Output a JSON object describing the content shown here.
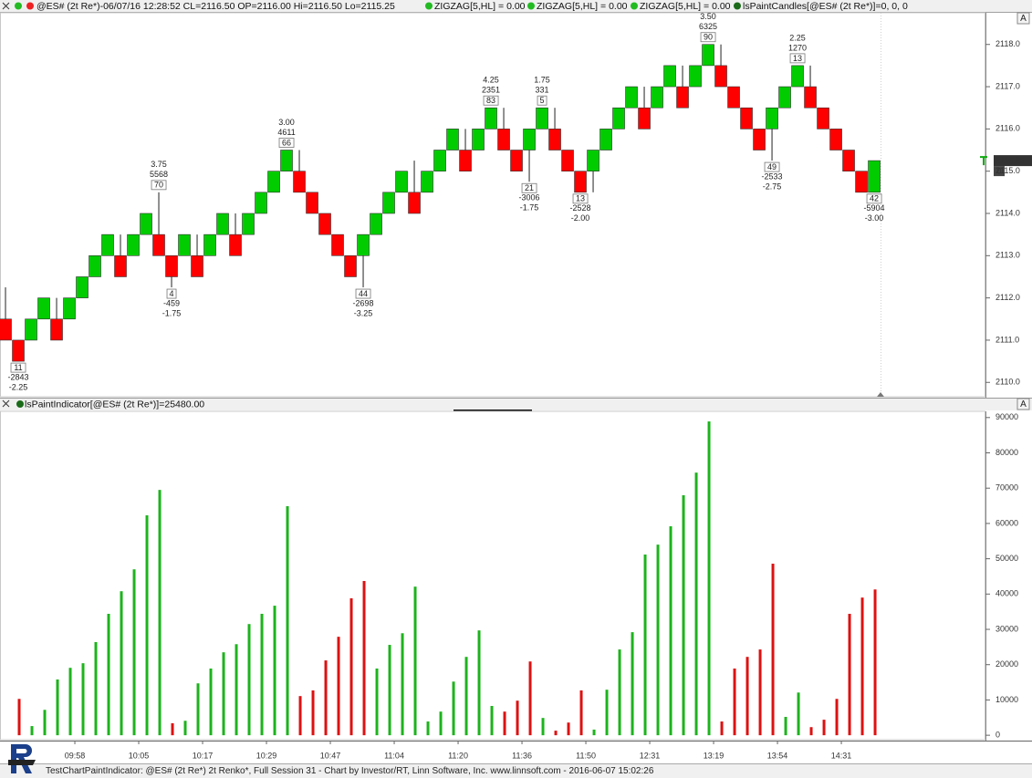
{
  "status_bar": {
    "quote": "@ES# (2t Re*)-06/07/16 12:28:52 CL=2116.50 OP=2116.00 Hi=2116.50 Lo=2115.25",
    "indicators": [
      "ZIGZAG[5,HL] = 0.00",
      "ZIGZAG[5,HL] = 0.00",
      "ZIGZAG[5,HL] = 0.00",
      "lsPaintCandles[@ES# (2t Re*)]=0, 0, 0"
    ],
    "autoscale": "A"
  },
  "indicator_bar": {
    "text": "lsPaintIndicator[@ES# (2t Re*)]=25480.00",
    "autoscale": "A"
  },
  "footer": "TestChartPaintIndicator: @ES# (2t Re*) 2t Renko*, Full Session 31 - Chart by Investor/RT, Linn Software, Inc. www.linnsoft.com - 2016-06-07 15:02:26",
  "chart_data": [
    {
      "type": "candlestick",
      "up_color": "#00cc00",
      "down_color": "#ff0000",
      "xlim": [
        -0.43,
        76.71
      ],
      "ylim": [
        2109.66,
        2118.75
      ],
      "yticks": [
        {
          "value": 2110,
          "label": "2110.0"
        },
        {
          "value": 2111,
          "label": "2111.0"
        },
        {
          "value": 2112,
          "label": "2112.0"
        },
        {
          "value": 2113,
          "label": "2113.0"
        },
        {
          "value": 2114,
          "label": "2114.0"
        },
        {
          "value": 2115,
          "label": "2115.0"
        },
        {
          "value": 2116,
          "label": "2116.0"
        },
        {
          "value": 2117,
          "label": "2117.0"
        },
        {
          "value": 2118,
          "label": "2118.0"
        }
      ],
      "last_price": {
        "value": 2115.25,
        "label": "2115.25"
      },
      "last_price_count": 0,
      "open": [
        2111.5,
        2111.0,
        2111.0,
        2111.5,
        2111.5,
        2111.5,
        2112.0,
        2112.5,
        2113.0,
        2113.0,
        2113.0,
        2113.5,
        2113.5,
        2113.0,
        2113.0,
        2113.0,
        2113.0,
        2113.5,
        2113.5,
        2113.5,
        2114.0,
        2114.5,
        2115.0,
        2115.0,
        2114.5,
        2114.0,
        2113.5,
        2113.0,
        2113.0,
        2113.5,
        2114.0,
        2114.5,
        2114.5,
        2114.5,
        2115.0,
        2115.5,
        2115.5,
        2115.5,
        2116.0,
        2116.0,
        2115.5,
        2115.5,
        2116.0,
        2116.0,
        2115.5,
        2115.0,
        2115.0,
        2115.5,
        2116.0,
        2116.5,
        2116.5,
        2116.5,
        2117.0,
        2117.0,
        2117.0,
        2117.5,
        2117.5,
        2117.0,
        2116.5,
        2116.0,
        2116.0,
        2116.5,
        2117.0,
        2117.0,
        2116.5,
        2116.0,
        2115.5,
        2115.0,
        2114.5
      ],
      "close": [
        2111.0,
        2110.5,
        2111.5,
        2112.0,
        2111.0,
        2112.0,
        2112.5,
        2113.0,
        2113.5,
        2112.5,
        2113.5,
        2114.0,
        2113.0,
        2112.5,
        2113.5,
        2112.5,
        2113.5,
        2114.0,
        2113.0,
        2114.0,
        2114.5,
        2115.0,
        2115.5,
        2114.5,
        2114.0,
        2113.5,
        2113.0,
        2112.5,
        2113.5,
        2114.0,
        2114.5,
        2115.0,
        2114.0,
        2115.0,
        2115.5,
        2116.0,
        2115.0,
        2116.0,
        2116.5,
        2115.5,
        2115.0,
        2116.0,
        2116.5,
        2115.5,
        2115.0,
        2114.5,
        2115.5,
        2116.0,
        2116.5,
        2117.0,
        2116.0,
        2117.0,
        2117.5,
        2116.5,
        2117.5,
        2118.0,
        2117.0,
        2116.5,
        2116.0,
        2115.5,
        2116.5,
        2117.0,
        2117.5,
        2116.5,
        2116.0,
        2115.5,
        2115.0,
        2114.5,
        2115.25
      ],
      "high": [
        2112.25,
        2111.0,
        2111.5,
        2112.0,
        2112.0,
        2112.0,
        2112.5,
        2113.0,
        2113.5,
        2113.5,
        2113.5,
        2114.0,
        2114.5,
        2113.0,
        2113.5,
        2113.5,
        2113.5,
        2114.0,
        2114.0,
        2114.0,
        2114.5,
        2115.0,
        2115.5,
        2115.5,
        2114.5,
        2114.0,
        2113.5,
        2113.0,
        2113.5,
        2114.0,
        2114.5,
        2115.0,
        2115.25,
        2115.0,
        2115.5,
        2116.0,
        2116.0,
        2116.0,
        2116.5,
        2116.5,
        2115.5,
        2116.0,
        2116.5,
        2116.5,
        2115.5,
        2115.0,
        2115.5,
        2116.0,
        2116.5,
        2117.0,
        2117.0,
        2117.0,
        2117.5,
        2117.5,
        2117.5,
        2118.0,
        2118.0,
        2117.0,
        2116.5,
        2116.0,
        2116.5,
        2117.0,
        2117.5,
        2117.5,
        2116.5,
        2116.0,
        2115.5,
        2115.0,
        2115.25
      ],
      "low": [
        2111.0,
        2110.5,
        2111.0,
        2111.5,
        2111.0,
        2111.5,
        2112.0,
        2112.5,
        2113.0,
        2112.5,
        2113.0,
        2113.5,
        2113.0,
        2112.25,
        2113.0,
        2112.5,
        2113.0,
        2113.5,
        2113.0,
        2113.5,
        2114.0,
        2114.5,
        2115.0,
        2114.5,
        2114.0,
        2113.5,
        2113.0,
        2112.5,
        2112.25,
        2113.5,
        2114.0,
        2114.5,
        2114.0,
        2114.5,
        2115.0,
        2115.5,
        2115.0,
        2115.5,
        2116.0,
        2115.5,
        2115.0,
        2114.75,
        2116.0,
        2115.5,
        2115.0,
        2114.5,
        2114.5,
        2115.5,
        2116.0,
        2116.5,
        2116.0,
        2116.5,
        2117.0,
        2116.5,
        2117.0,
        2117.5,
        2117.0,
        2116.5,
        2116.0,
        2115.5,
        2115.25,
        2116.5,
        2117.0,
        2116.5,
        2116.0,
        2115.5,
        2115.0,
        2114.5,
        2114.5
      ],
      "annotations": [
        {
          "index": 1,
          "position": "below",
          "count": "11",
          "volume": "-2843",
          "change": "-2.25"
        },
        {
          "index": 12,
          "position": "above",
          "count": "70",
          "volume": "5568",
          "change": "3.75"
        },
        {
          "index": 13,
          "position": "below",
          "count": "4",
          "volume": "-459",
          "change": "-1.75"
        },
        {
          "index": 22,
          "position": "above",
          "count": "66",
          "volume": "4611",
          "change": "3.00"
        },
        {
          "index": 28,
          "position": "below",
          "count": "44",
          "volume": "-2698",
          "change": "-3.25"
        },
        {
          "index": 38,
          "position": "above",
          "count": "83",
          "volume": "2351",
          "change": "4.25"
        },
        {
          "index": 41,
          "position": "below",
          "count": "21",
          "volume": "-3006",
          "change": "-1.75"
        },
        {
          "index": 42,
          "position": "above",
          "count": "5",
          "volume": "331",
          "change": "1.75"
        },
        {
          "index": 45,
          "position": "below",
          "count": "13",
          "volume": "-2528",
          "change": "-2.00"
        },
        {
          "index": 55,
          "position": "above",
          "count": "90",
          "volume": "6325",
          "change": "3.50"
        },
        {
          "index": 60,
          "position": "below",
          "count": "49",
          "volume": "-2533",
          "change": "-2.75"
        },
        {
          "index": 62,
          "position": "above",
          "count": "13",
          "volume": "1270",
          "change": "2.25"
        },
        {
          "index": 68,
          "position": "below",
          "count": "42",
          "volume": "-5904",
          "change": "-3.00"
        }
      ]
    },
    {
      "type": "bar",
      "xlim": [
        -0.43,
        76.71
      ],
      "ylim": [
        -1000,
        91500
      ],
      "yticks": [
        0,
        10000,
        20000,
        30000,
        40000,
        50000,
        60000,
        70000,
        80000,
        90000
      ],
      "xticks": [
        {
          "value": 5,
          "label": "09:58"
        },
        {
          "value": 10,
          "label": "10:05"
        },
        {
          "value": 15,
          "label": "10:17"
        },
        {
          "value": 20,
          "label": "10:29"
        },
        {
          "value": 25,
          "label": "10:47"
        },
        {
          "value": 30,
          "label": "11:04"
        },
        {
          "value": 35,
          "label": "11:20"
        },
        {
          "value": 40,
          "label": "11:36"
        },
        {
          "value": 45,
          "label": "11:50"
        },
        {
          "value": 50,
          "label": "12:31"
        },
        {
          "value": 55,
          "label": "13:19"
        },
        {
          "value": 60,
          "label": "13:54"
        },
        {
          "value": 65,
          "label": "14:31"
        }
      ],
      "series": [
        {
          "color": "#1db31d",
          "values": [
            null,
            null,
            2600,
            7200,
            15800,
            19100,
            20400,
            26400,
            34400,
            40800,
            47000,
            62300,
            69500,
            null,
            4100,
            14700,
            18900,
            23500,
            25800,
            31500,
            34400,
            36700,
            64900,
            null,
            null,
            null,
            null,
            null,
            null,
            18900,
            25600,
            28900,
            42100,
            3900,
            6700,
            15200,
            22200,
            29700,
            8300,
            null,
            null,
            null,
            4900,
            null,
            null,
            null,
            1600,
            12900,
            24300,
            29200,
            51200,
            54000,
            59200,
            68000,
            74400,
            88900,
            null,
            null,
            null,
            null,
            null,
            5200,
            12100,
            null,
            null,
            null,
            null,
            null,
            null
          ]
        },
        {
          "color": "#dd1111",
          "values": [
            null,
            10300,
            null,
            null,
            null,
            null,
            null,
            null,
            null,
            null,
            null,
            null,
            null,
            3400,
            null,
            null,
            null,
            null,
            null,
            null,
            null,
            null,
            null,
            11100,
            12700,
            21200,
            27900,
            38800,
            43700,
            null,
            null,
            null,
            null,
            null,
            null,
            null,
            null,
            null,
            null,
            6700,
            9800,
            20900,
            null,
            1300,
            3600,
            12700,
            null,
            null,
            null,
            null,
            null,
            null,
            null,
            null,
            null,
            null,
            3900,
            18900,
            22200,
            24300,
            48600,
            null,
            null,
            2300,
            4400,
            10300,
            34400,
            39000,
            41300
          ]
        }
      ]
    }
  ]
}
